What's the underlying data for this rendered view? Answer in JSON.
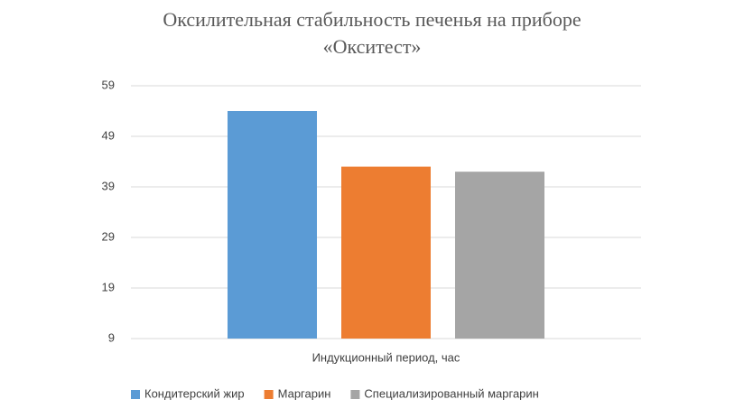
{
  "chart_data": {
    "type": "bar",
    "title": [
      "Оксилительная стабильность печенья на приборе",
      "«Окситест»"
    ],
    "categories": [
      "Индукционный период, час"
    ],
    "series": [
      {
        "name": "Кондитерский жир",
        "color": "#5b9bd5",
        "values": [
          54
        ]
      },
      {
        "name": "Маргарин",
        "color": "#ed7d31",
        "values": [
          43
        ]
      },
      {
        "name": "Специализированный маргарин",
        "color": "#a5a5a5",
        "values": [
          42
        ]
      }
    ],
    "ylim": [
      9,
      59
    ],
    "yticks": [
      9,
      19,
      29,
      39,
      49,
      59
    ],
    "grid": true,
    "legend": "bottom"
  }
}
